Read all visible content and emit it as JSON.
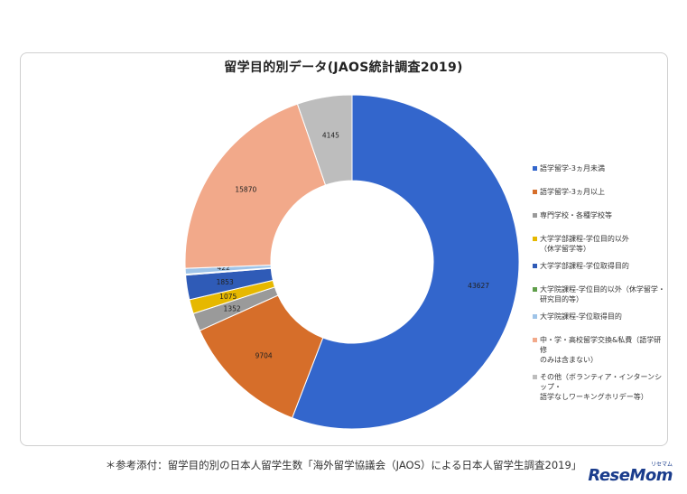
{
  "chart_data": {
    "type": "pie",
    "style": "donut",
    "title": "留学目的別データ(JAOS統計調査2019)",
    "legend_position": "right",
    "slices": [
      {
        "label": "語学留学-3ヵ月未満",
        "value": 43627,
        "color": "#3366cc"
      },
      {
        "label": "語学留学-3ヵ月以上",
        "value": 9704,
        "color": "#d66e2a"
      },
      {
        "label": "専門学校・各種学校等",
        "value": 1352,
        "color": "#9a9a9a"
      },
      {
        "label": "大学学部課程-学位目的以外\n（休学留学等）",
        "value": 1075,
        "color": "#e6b800"
      },
      {
        "label": "大学学部課程-学位取得目的",
        "value": 1853,
        "color": "#2f5bb7"
      },
      {
        "label": "大学院課程-学位目的以外（休学留学・\n研究目的等）",
        "value": 82,
        "color": "#5f9e4a"
      },
      {
        "label": "大学院課程-学位取得目的",
        "value": 422,
        "color": "#9fc4e8"
      },
      {
        "label": "中・学・高校留学交換&私費（語学研修\nのみは含まない）",
        "value": 15870,
        "color": "#f2a98a"
      },
      {
        "label": "その他（ボランティア・インターンシップ・\n語学なしワーキングホリデー等）",
        "value": 4145,
        "color": "#bdbdbd"
      }
    ]
  },
  "caption": "＊参考添付：留学目的別の日本人留学生数「海外留学協議会（JAOS）による日本人留学生調査2019」",
  "logo": "ReseMom",
  "logo_small": "リセマム"
}
